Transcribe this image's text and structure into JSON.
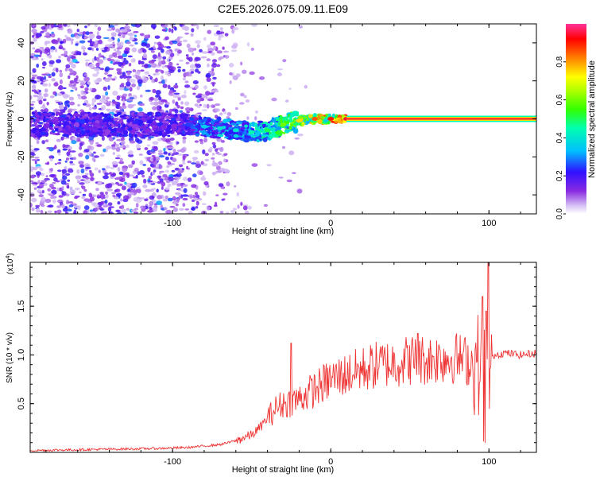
{
  "figure": {
    "title": "C2E5.2026.075.09.11.E09"
  },
  "chart_data": [
    {
      "type": "heatmap",
      "xlabel": "Height of straight line (km)",
      "ylabel": "Frequency (Hz)",
      "xlim": [
        -190,
        130
      ],
      "ylim": [
        -50,
        50
      ],
      "xticks": [
        -100,
        0,
        100
      ],
      "yticks": [
        -40,
        -20,
        0,
        20,
        40
      ],
      "xtick_labels": [
        "-100",
        "0",
        "100"
      ],
      "ytick_labels": [
        "-40",
        "-20",
        "0",
        "20",
        "40"
      ],
      "grid": false,
      "colorbar": {
        "label": "Normalized spectral amplitude",
        "range": [
          0,
          1
        ],
        "ticks": [
          0,
          0.2,
          0.4,
          0.6,
          0.8
        ],
        "tick_labels": [
          "0.0",
          "0.2",
          "0.4",
          "0.6",
          "0.8"
        ]
      },
      "spectral_line_x": [
        -90,
        -80,
        -70,
        -60,
        -50,
        -40,
        -30,
        -20,
        -10,
        0,
        10,
        20,
        40,
        60,
        80,
        100,
        120,
        130
      ],
      "spectral_line_freq_hz": [
        -3,
        -4,
        -5,
        -6,
        -7,
        -6,
        -3,
        -1,
        0,
        0,
        0,
        0,
        0,
        0,
        0,
        0,
        0,
        0
      ],
      "spectral_line_amplitude": [
        0.25,
        0.35,
        0.4,
        0.4,
        0.45,
        0.5,
        0.6,
        0.75,
        0.85,
        0.9,
        0.95,
        0.97,
        0.97,
        0.97,
        0.97,
        0.97,
        1.0,
        1.0
      ]
    },
    {
      "type": "line",
      "xlabel": "Height of straight line (km)",
      "ylabel": "SNR (10 * v/v)",
      "y_multiplier": "(x10",
      "y_multiplier_exp": "4",
      "y_multiplier_close": ")",
      "xlim": [
        -190,
        130
      ],
      "ylim": [
        0,
        1.95
      ],
      "xticks": [
        -100,
        0,
        100
      ],
      "yticks": [
        0.5,
        1.0,
        1.5
      ],
      "xtick_labels": [
        "-100",
        "0",
        "100"
      ],
      "ytick_labels": [
        "0.5",
        "1.0",
        "1.5"
      ],
      "grid": false,
      "series": [
        {
          "color": "#ee3333",
          "x": [
            -190,
            -150,
            -110,
            -90,
            -70,
            -60,
            -50,
            -45,
            -40,
            -35,
            -30,
            -25,
            -20,
            -15,
            -10,
            -5,
            0,
            10,
            20,
            30,
            40,
            50,
            60,
            70,
            80,
            90,
            95,
            100,
            103,
            110,
            120,
            130
          ],
          "y": [
            0.02,
            0.03,
            0.04,
            0.05,
            0.08,
            0.12,
            0.18,
            0.25,
            0.35,
            0.45,
            0.5,
            0.52,
            0.55,
            0.6,
            0.65,
            0.7,
            0.75,
            0.8,
            0.85,
            0.9,
            0.92,
            0.95,
            0.95,
            0.97,
            0.97,
            0.92,
            0.9,
            0.85,
            1.0,
            1.02,
            1.0,
            1.02
          ],
          "peaks_x": [
            -25,
            55,
            96,
            98,
            99.5
          ],
          "peaks_y": [
            1.12,
            1.22,
            1.6,
            1.45,
            1.95
          ]
        }
      ]
    }
  ]
}
